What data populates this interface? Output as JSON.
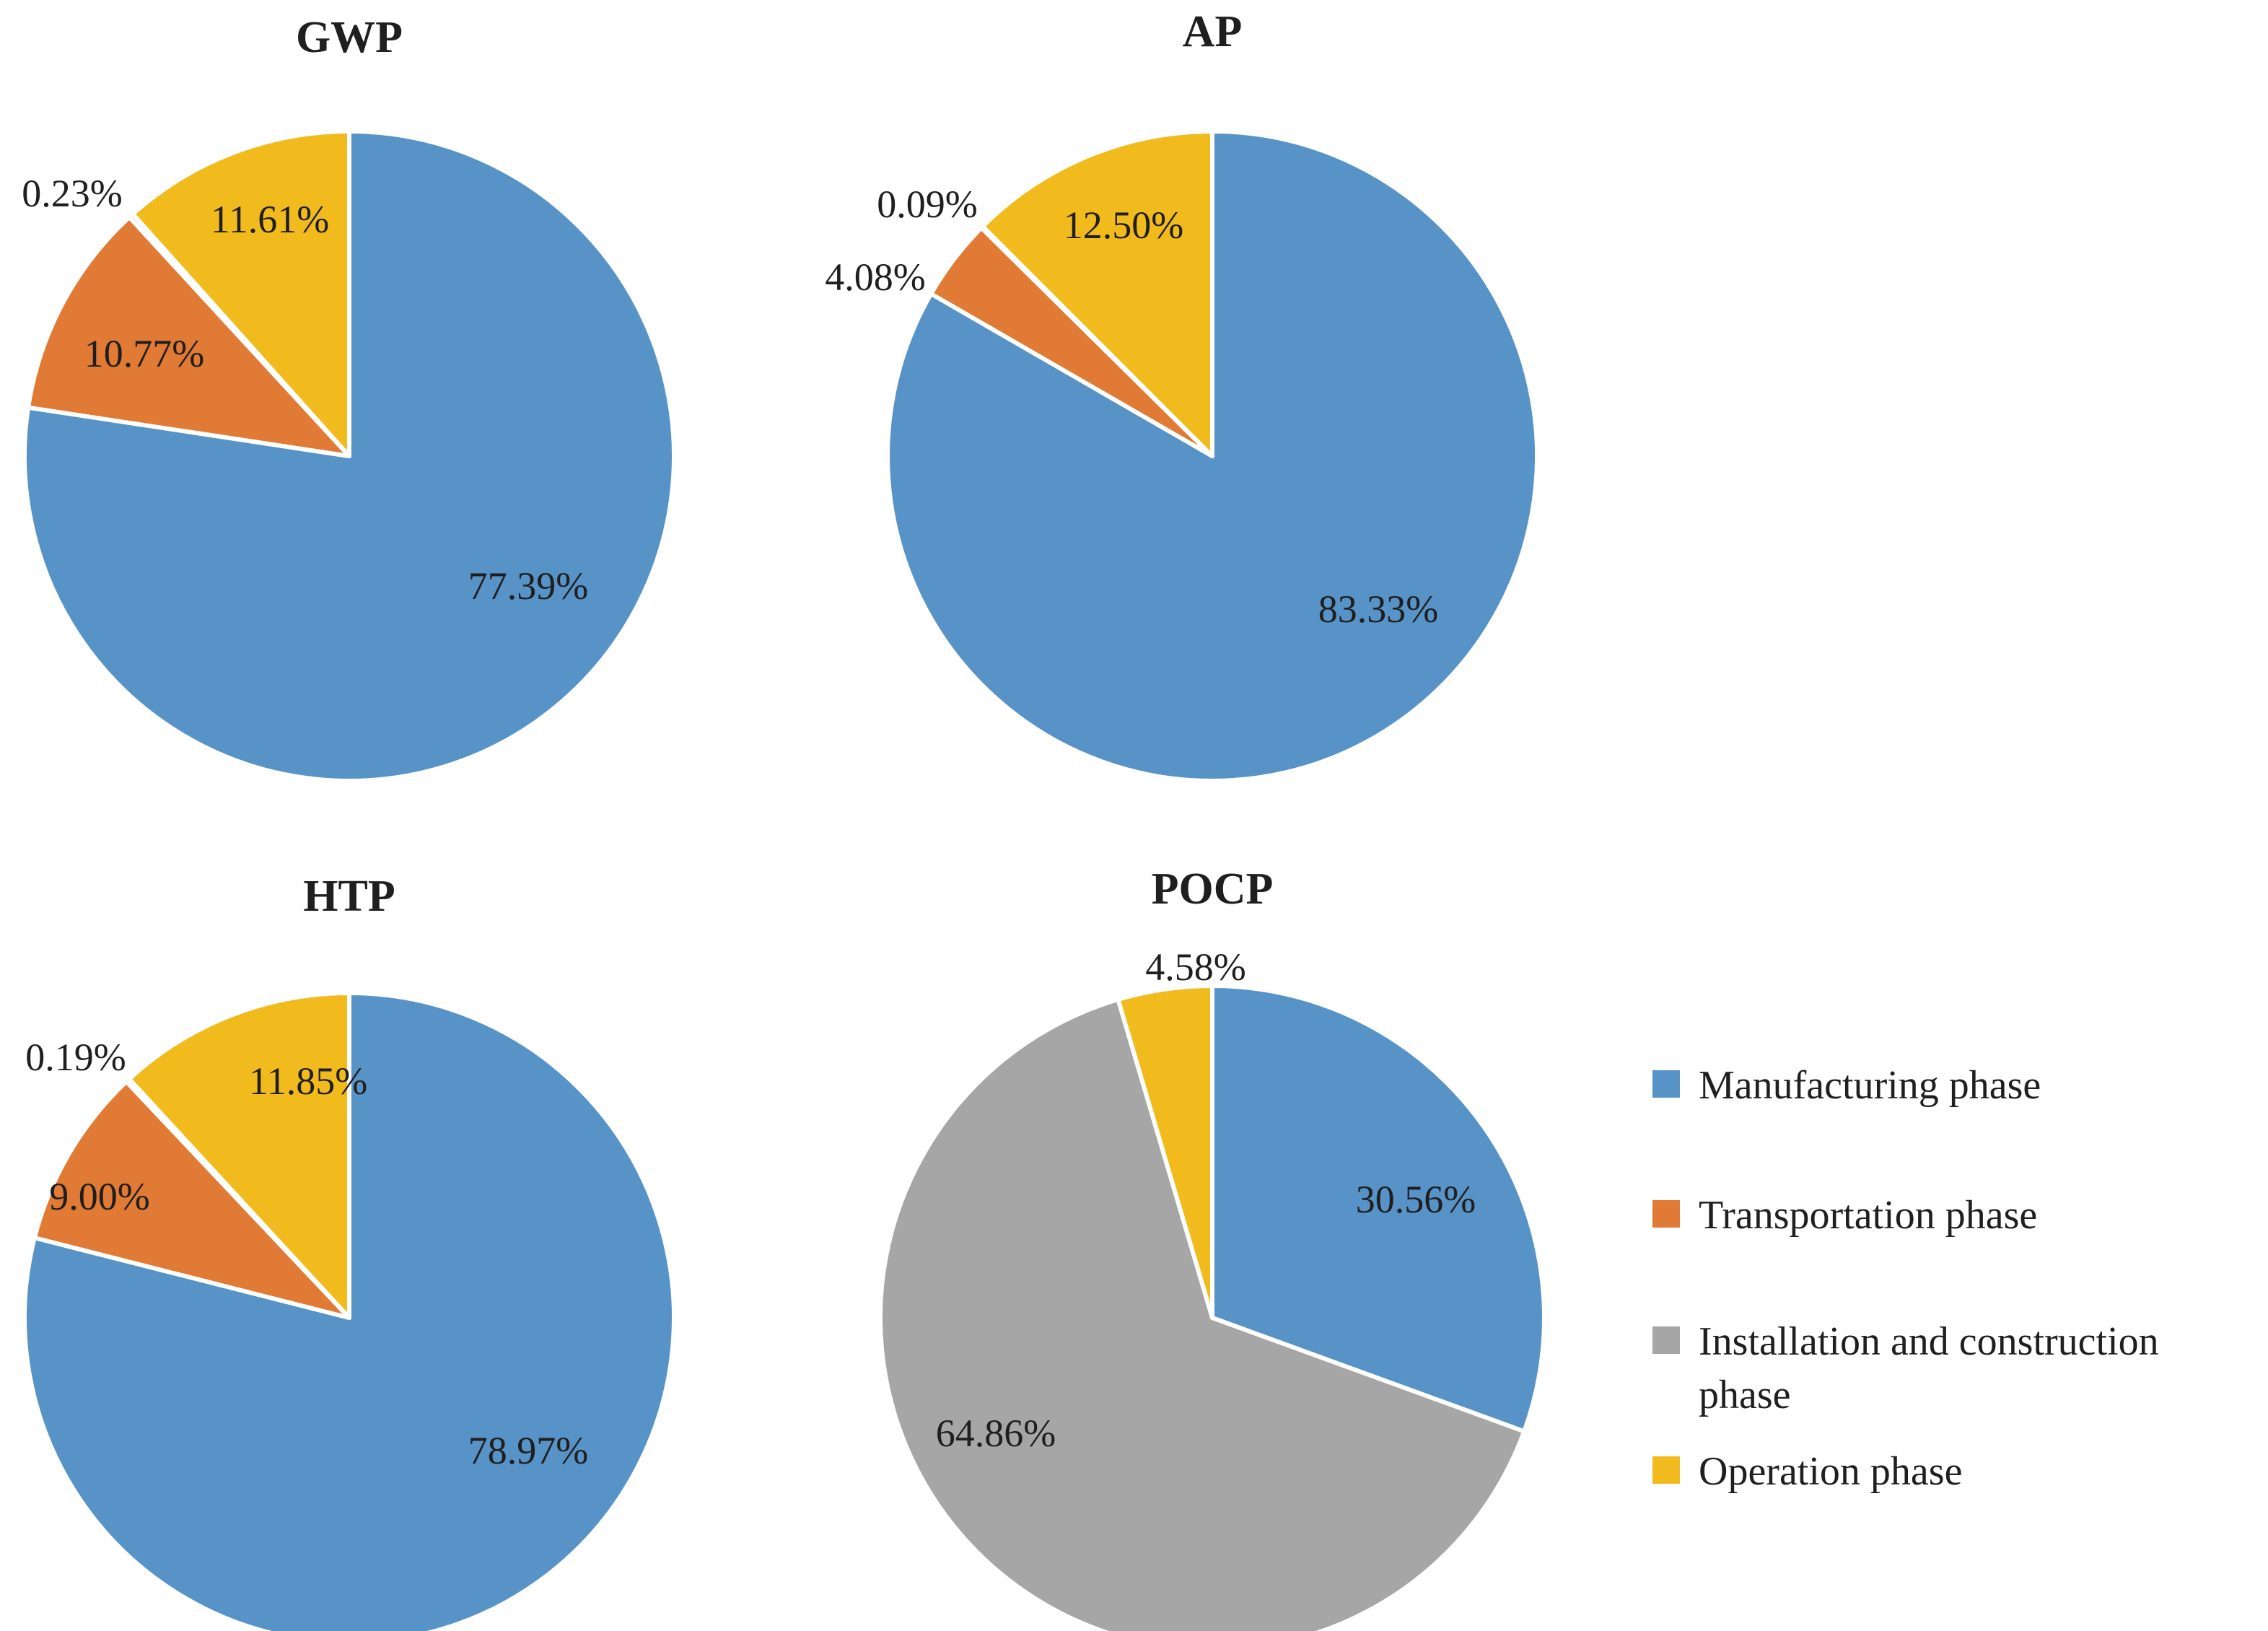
{
  "chart_data": [
    {
      "type": "pie",
      "title": "GWP",
      "categories": [
        "Manufacturing phase",
        "Transportation phase",
        "Installation and construction phase",
        "Operation phase"
      ],
      "values": [
        77.39,
        10.77,
        0.23,
        11.61
      ],
      "labels": [
        "77.39%",
        "10.77%",
        "0.23%",
        "11.61%"
      ],
      "start_angle_deg": 0,
      "direction": "clockwise"
    },
    {
      "type": "pie",
      "title": "AP",
      "categories": [
        "Manufacturing phase",
        "Transportation phase",
        "Installation and construction phase",
        "Operation phase"
      ],
      "values": [
        83.33,
        4.08,
        0.09,
        12.5
      ],
      "labels": [
        "83.33%",
        "4.08%",
        "0.09%",
        "12.50%"
      ],
      "start_angle_deg": 0,
      "direction": "clockwise"
    },
    {
      "type": "pie",
      "title": "HTP",
      "categories": [
        "Manufacturing phase",
        "Transportation phase",
        "Installation and construction phase",
        "Operation phase"
      ],
      "values": [
        78.97,
        9.0,
        0.19,
        11.85
      ],
      "labels": [
        "78.97%",
        "9.00%",
        "0.19%",
        "11.85%"
      ],
      "start_angle_deg": 0,
      "direction": "clockwise"
    },
    {
      "type": "pie",
      "title": "POCP",
      "categories": [
        "Manufacturing phase",
        "Installation and construction phase",
        "Operation phase"
      ],
      "values": [
        30.56,
        64.86,
        4.58
      ],
      "labels": [
        "30.56%",
        "64.86%",
        "4.58%"
      ],
      "start_angle_deg": 0,
      "direction": "clockwise"
    }
  ],
  "legend": {
    "placement": "bottom-right",
    "items": [
      {
        "label": "Manufacturing phase",
        "color": "#5893c8"
      },
      {
        "label": "Transportation phase",
        "color": "#e07a35"
      },
      {
        "label": "Installation and construction phase",
        "color": "#a6a6a6"
      },
      {
        "label": "Operation phase",
        "color": "#f2bb1d"
      }
    ]
  }
}
